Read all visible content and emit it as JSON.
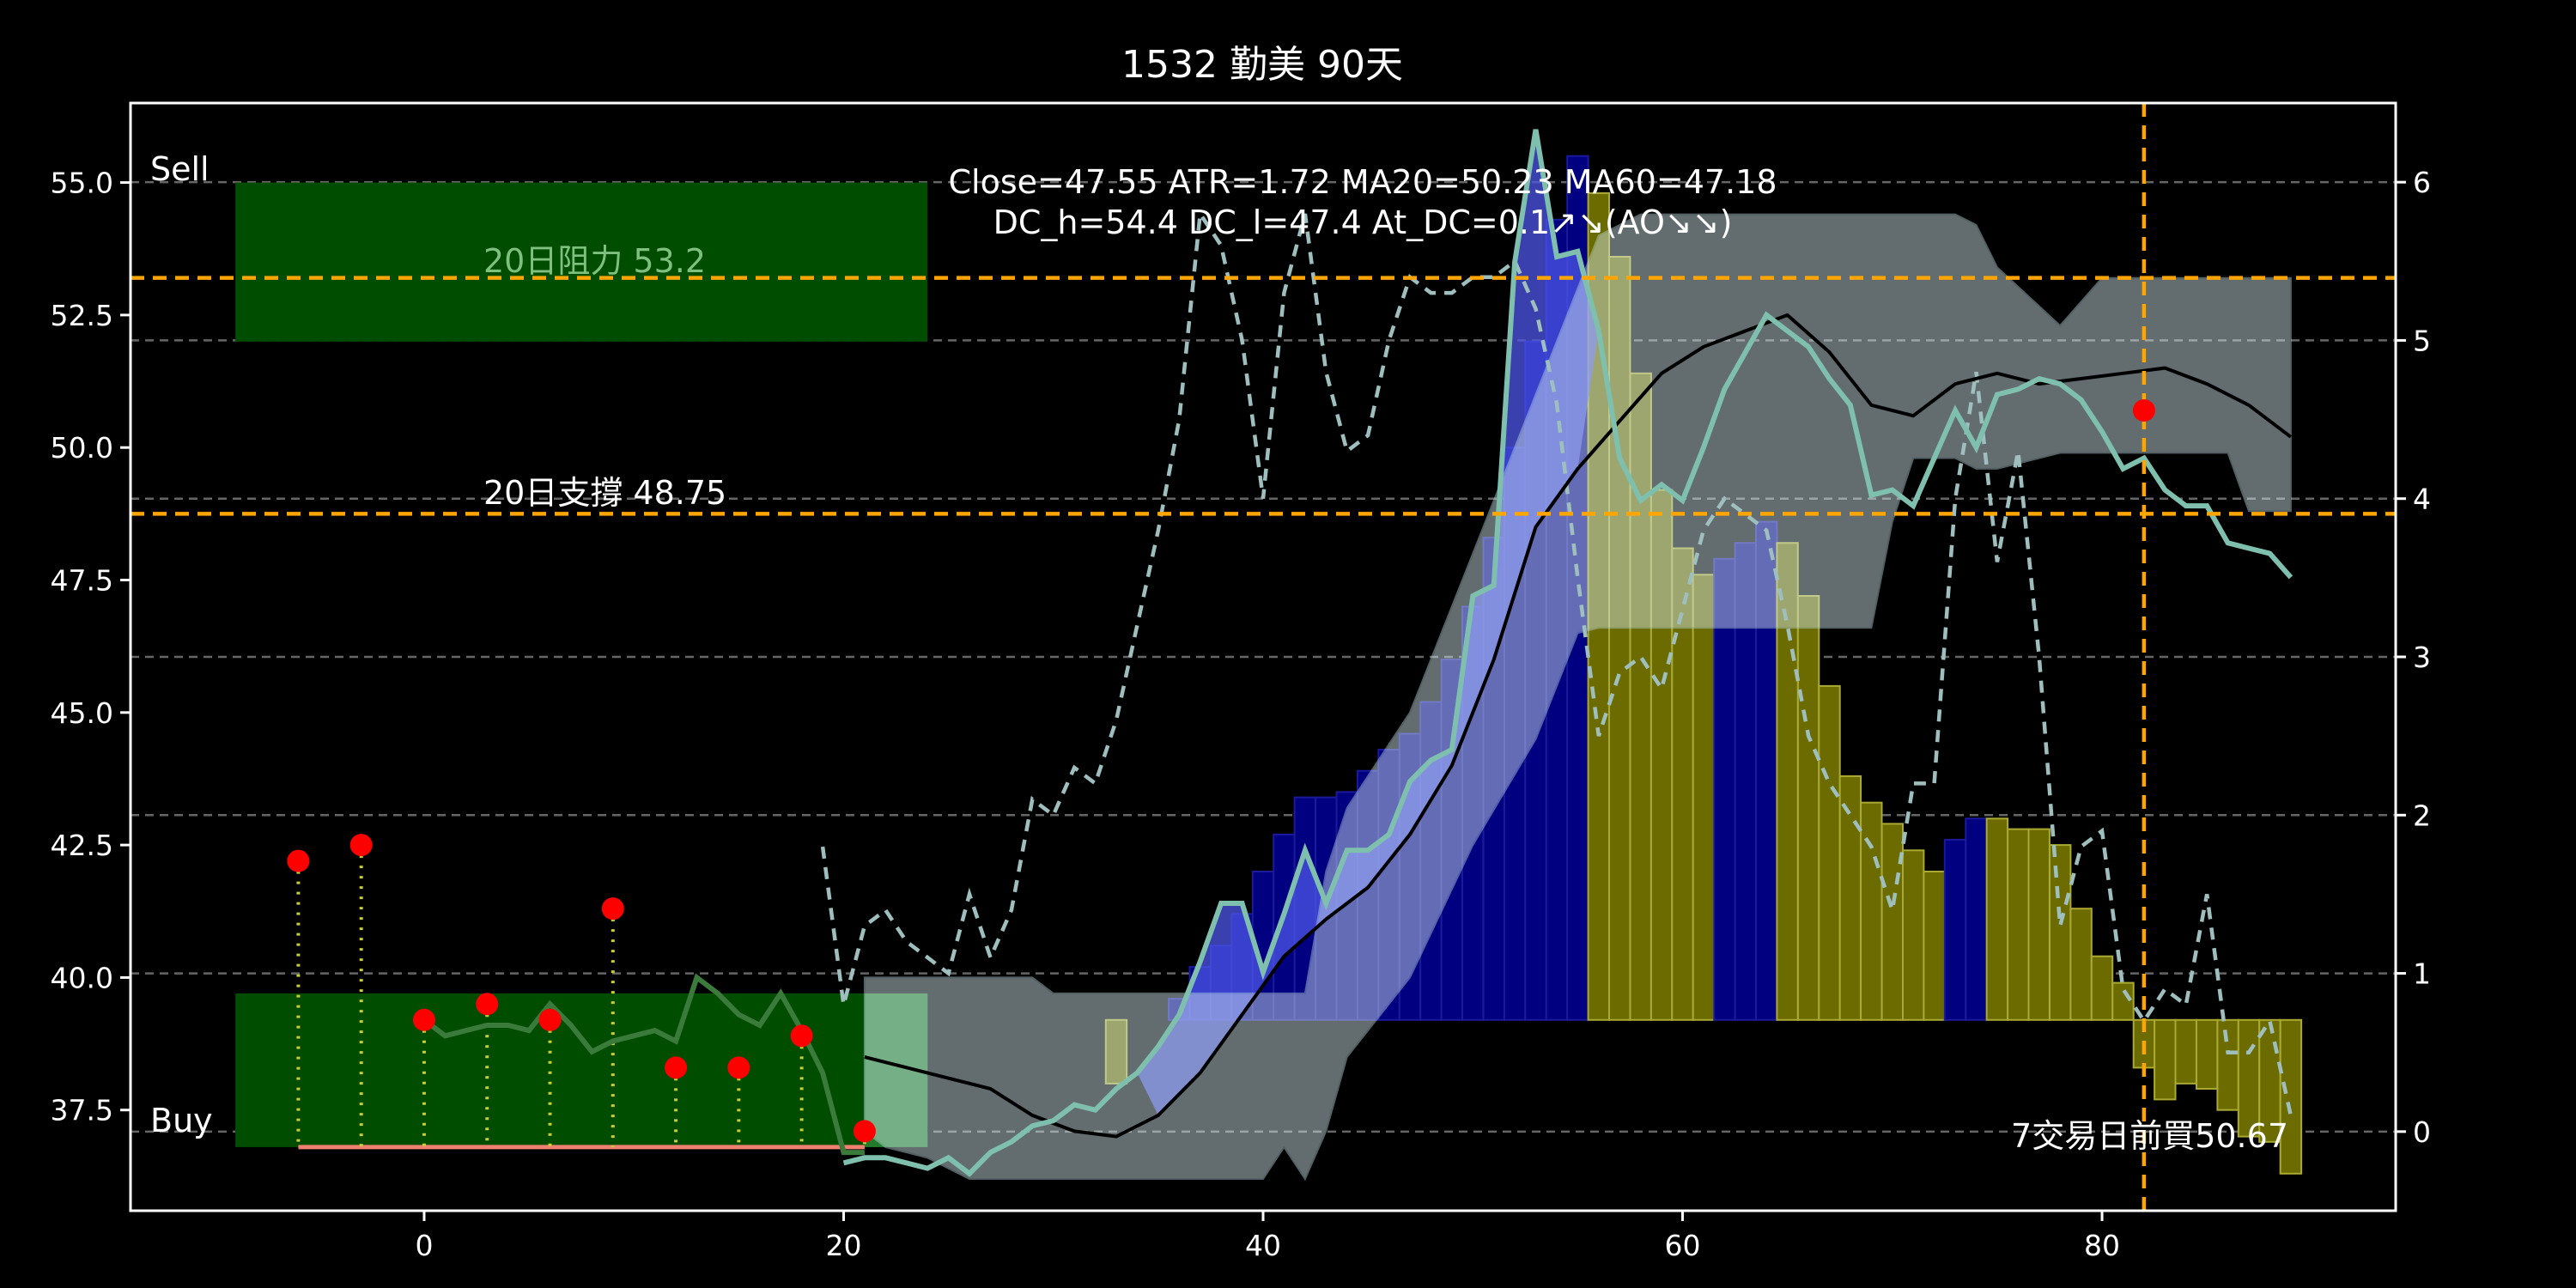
{
  "chart_data": {
    "type": "line",
    "title": "1532 勤美 90天",
    "xlabel": "",
    "ylabel": "",
    "x_range": [
      -14,
      94
    ],
    "y_range": [
      35.6,
      56.5
    ],
    "y2_range": [
      -0.5,
      6.5
    ],
    "x_ticks": [
      0,
      20,
      40,
      60,
      80
    ],
    "x_tick_labels": [
      "0",
      "20",
      "40",
      "60",
      "80"
    ],
    "y_ticks": [
      37.5,
      40.0,
      42.5,
      45.0,
      47.5,
      50.0,
      52.5,
      55.0
    ],
    "y_tick_labels": [
      "37.5",
      "40.0",
      "42.5",
      "45.0",
      "47.5",
      "50.0",
      "52.5",
      "55.0"
    ],
    "y2_ticks": [
      0,
      1,
      2,
      3,
      4,
      5,
      6
    ],
    "y2_tick_labels": [
      "0",
      "1",
      "2",
      "3",
      "4",
      "5",
      "6"
    ],
    "info_line1": "Close=47.55 ATR=1.72 MA20=50.23 MA60=47.18",
    "info_line2": "DC_h=54.4 DC_l=47.4 At_DC=0.1↗↘(AO↘↘)",
    "sell_label": "Sell",
    "buy_label": "Buy",
    "resistance": {
      "value": 53.2,
      "label": "20日阻力 53.2"
    },
    "support": {
      "value": 48.75,
      "label": "20日支撐 48.75"
    },
    "buy_note": {
      "x": 82,
      "label": "7交易日前買50.67"
    },
    "sell_zone": {
      "x": [
        -9,
        24
      ],
      "y": [
        52.0,
        55.0
      ]
    },
    "buy_zone": {
      "x": [
        -9,
        24
      ],
      "y": [
        36.8,
        39.7
      ]
    },
    "ao_bar_base": 39.2,
    "ao_bars": [
      {
        "x": 33,
        "top": 38.0,
        "c": "y"
      },
      {
        "x": 34,
        "top": 39.2,
        "c": "b"
      },
      {
        "x": 35,
        "top": 39.2,
        "c": "b"
      },
      {
        "x": 36,
        "top": 39.6,
        "c": "b"
      },
      {
        "x": 37,
        "top": 40.2,
        "c": "b"
      },
      {
        "x": 38,
        "top": 40.6,
        "c": "b"
      },
      {
        "x": 39,
        "top": 41.2,
        "c": "b"
      },
      {
        "x": 40,
        "top": 42.0,
        "c": "b"
      },
      {
        "x": 41,
        "top": 42.7,
        "c": "b"
      },
      {
        "x": 42,
        "top": 43.4,
        "c": "b"
      },
      {
        "x": 43,
        "top": 43.4,
        "c": "b"
      },
      {
        "x": 44,
        "top": 43.5,
        "c": "b"
      },
      {
        "x": 45,
        "top": 43.9,
        "c": "b"
      },
      {
        "x": 46,
        "top": 44.3,
        "c": "b"
      },
      {
        "x": 47,
        "top": 44.6,
        "c": "b"
      },
      {
        "x": 48,
        "top": 45.2,
        "c": "b"
      },
      {
        "x": 49,
        "top": 46.0,
        "c": "b"
      },
      {
        "x": 50,
        "top": 47.0,
        "c": "b"
      },
      {
        "x": 51,
        "top": 48.3,
        "c": "b"
      },
      {
        "x": 52,
        "top": 50.0,
        "c": "b"
      },
      {
        "x": 53,
        "top": 52.0,
        "c": "b"
      },
      {
        "x": 54,
        "top": 54.3,
        "c": "b"
      },
      {
        "x": 55,
        "top": 55.5,
        "c": "b"
      },
      {
        "x": 56,
        "top": 54.8,
        "c": "y"
      },
      {
        "x": 57,
        "top": 53.6,
        "c": "y"
      },
      {
        "x": 58,
        "top": 51.4,
        "c": "y"
      },
      {
        "x": 59,
        "top": 49.2,
        "c": "y"
      },
      {
        "x": 60,
        "top": 48.1,
        "c": "y"
      },
      {
        "x": 61,
        "top": 47.6,
        "c": "y"
      },
      {
        "x": 62,
        "top": 47.9,
        "c": "b"
      },
      {
        "x": 63,
        "top": 48.2,
        "c": "b"
      },
      {
        "x": 64,
        "top": 48.6,
        "c": "b"
      },
      {
        "x": 65,
        "top": 48.2,
        "c": "y"
      },
      {
        "x": 66,
        "top": 47.2,
        "c": "y"
      },
      {
        "x": 67,
        "top": 45.5,
        "c": "y"
      },
      {
        "x": 68,
        "top": 43.8,
        "c": "y"
      },
      {
        "x": 69,
        "top": 43.3,
        "c": "y"
      },
      {
        "x": 70,
        "top": 42.9,
        "c": "y"
      },
      {
        "x": 71,
        "top": 42.4,
        "c": "y"
      },
      {
        "x": 72,
        "top": 42.0,
        "c": "y"
      },
      {
        "x": 73,
        "top": 42.6,
        "c": "b"
      },
      {
        "x": 74,
        "top": 43.0,
        "c": "b"
      },
      {
        "x": 75,
        "top": 43.0,
        "c": "y"
      },
      {
        "x": 76,
        "top": 42.8,
        "c": "y"
      },
      {
        "x": 77,
        "top": 42.8,
        "c": "y"
      },
      {
        "x": 78,
        "top": 42.5,
        "c": "y"
      },
      {
        "x": 79,
        "top": 41.3,
        "c": "y"
      },
      {
        "x": 80,
        "top": 40.4,
        "c": "y"
      },
      {
        "x": 81,
        "top": 39.9,
        "c": "y"
      },
      {
        "x": 82,
        "top": 38.3,
        "c": "y"
      },
      {
        "x": 83,
        "top": 37.7,
        "c": "y"
      },
      {
        "x": 84,
        "top": 38.0,
        "c": "y"
      },
      {
        "x": 85,
        "top": 37.9,
        "c": "y"
      },
      {
        "x": 86,
        "top": 37.5,
        "c": "y"
      },
      {
        "x": 87,
        "top": 37.0,
        "c": "y"
      },
      {
        "x": 88,
        "top": 36.9,
        "c": "y"
      },
      {
        "x": 89,
        "top": 36.3,
        "c": "y"
      }
    ],
    "dc_band": {
      "x": [
        21,
        22,
        24,
        26,
        29,
        30,
        32,
        34,
        36,
        38,
        40,
        41,
        42,
        43,
        44,
        47,
        50,
        53,
        55,
        56,
        58,
        60,
        62,
        66,
        68,
        69,
        70,
        71,
        73,
        74,
        75,
        78,
        80,
        81,
        82,
        85,
        86,
        87,
        89
      ],
      "upper": [
        40.0,
        40.0,
        40.0,
        40.0,
        40.0,
        39.7,
        39.7,
        39.7,
        39.7,
        39.7,
        39.7,
        39.7,
        39.7,
        42.0,
        43.2,
        45.0,
        48.0,
        51.0,
        53.0,
        54.0,
        54.4,
        54.4,
        54.4,
        54.4,
        54.4,
        54.4,
        54.4,
        54.4,
        54.4,
        54.2,
        53.4,
        52.3,
        53.2,
        53.2,
        53.2,
        53.2,
        53.2,
        53.2,
        53.2
      ],
      "lower": [
        37.1,
        36.8,
        36.6,
        36.2,
        36.2,
        36.2,
        36.2,
        36.2,
        36.2,
        36.2,
        36.2,
        36.8,
        36.2,
        37.1,
        38.5,
        40.0,
        42.5,
        44.5,
        46.5,
        46.6,
        46.6,
        46.6,
        46.6,
        46.6,
        46.6,
        46.6,
        48.6,
        49.8,
        49.8,
        49.6,
        49.6,
        49.9,
        49.9,
        49.9,
        49.9,
        49.9,
        49.9,
        48.8,
        48.8
      ]
    },
    "series": [
      {
        "color": "#7fbfae",
        "x": [
          20,
          21,
          22,
          23,
          24,
          25,
          26,
          27,
          28,
          29,
          30,
          31,
          32,
          33,
          34,
          35,
          36,
          37,
          38,
          39,
          40,
          41,
          42,
          43,
          44,
          45,
          46,
          47,
          48,
          49,
          50,
          51,
          52,
          53,
          54,
          55,
          56,
          57,
          58,
          59,
          60,
          61,
          62,
          63,
          64,
          65,
          66,
          67,
          68,
          69,
          70,
          71,
          72,
          73,
          74,
          75,
          76,
          77,
          78,
          79,
          80,
          81,
          82,
          83,
          84,
          85,
          86,
          87,
          88,
          89
        ],
        "y": [
          36.5,
          36.6,
          36.6,
          36.5,
          36.4,
          36.6,
          36.3,
          36.7,
          36.9,
          37.2,
          37.3,
          37.6,
          37.5,
          37.9,
          38.2,
          38.7,
          39.3,
          40.3,
          41.4,
          41.4,
          40.1,
          41.2,
          42.4,
          41.4,
          42.4,
          42.4,
          42.7,
          43.7,
          44.1,
          44.3,
          47.2,
          47.4,
          53.5,
          56.0,
          53.6,
          53.7,
          52.2,
          49.8,
          49.0,
          49.3,
          49.0,
          50.0,
          51.1,
          51.8,
          52.5,
          52.2,
          51.9,
          51.3,
          50.8,
          49.1,
          49.2,
          48.9,
          49.8,
          50.7,
          50.0,
          51.0,
          51.1,
          51.3,
          51.2,
          50.9,
          50.3,
          49.6,
          49.8,
          49.2,
          48.9,
          48.9,
          48.2,
          48.1,
          48.0,
          47.55
        ]
      },
      {
        "color": "#3a7a3a",
        "x": [
          0,
          1,
          2,
          3,
          4,
          5,
          6,
          7,
          8,
          9,
          10,
          11,
          12,
          13,
          14,
          15,
          16,
          17,
          18,
          19,
          20,
          21
        ],
        "y": [
          39.2,
          38.9,
          39.0,
          39.1,
          39.1,
          39.0,
          39.5,
          39.1,
          38.6,
          38.8,
          38.9,
          39.0,
          38.8,
          40.0,
          39.7,
          39.3,
          39.1,
          39.7,
          39.0,
          38.2,
          36.7,
          36.7
        ]
      },
      {
        "color": "#000000",
        "x": [
          21,
          23,
          25,
          27,
          29,
          31,
          33,
          35,
          37,
          39,
          41,
          43,
          45,
          47,
          49,
          51,
          53,
          55,
          57,
          59,
          61,
          63,
          65,
          67,
          69,
          71,
          73,
          75,
          77,
          79,
          81,
          83,
          85,
          87,
          89
        ],
        "y": [
          38.5,
          38.3,
          38.1,
          37.9,
          37.4,
          37.1,
          37.0,
          37.4,
          38.2,
          39.3,
          40.4,
          41.1,
          41.7,
          42.7,
          44.0,
          46.0,
          48.5,
          49.6,
          50.5,
          51.4,
          51.9,
          52.2,
          52.5,
          51.8,
          50.8,
          50.6,
          51.2,
          51.4,
          51.2,
          51.3,
          51.4,
          51.5,
          51.2,
          50.8,
          50.2
        ]
      }
    ],
    "dashed_series": {
      "color": "#9fbfbf",
      "x": [
        19,
        20,
        21,
        22,
        23,
        24,
        25,
        26,
        27,
        28,
        29,
        30,
        31,
        32,
        33,
        34,
        35,
        36,
        37,
        38,
        39,
        40,
        41,
        42,
        43,
        44,
        45,
        46,
        47,
        48,
        49,
        50,
        51,
        52,
        53,
        54,
        55,
        56,
        57,
        58,
        59,
        60,
        61,
        62,
        63,
        64,
        65,
        66,
        67,
        68,
        69,
        70,
        71,
        72,
        73,
        74,
        75,
        76,
        77,
        78,
        79,
        80,
        81,
        82,
        83,
        84,
        85,
        86,
        87,
        88,
        89
      ],
      "y2": [
        1.8,
        0.8,
        1.3,
        1.4,
        1.2,
        1.1,
        1.0,
        1.5,
        1.1,
        1.4,
        2.1,
        2.0,
        2.3,
        2.2,
        2.6,
        3.2,
        3.8,
        4.5,
        5.8,
        5.6,
        5.0,
        4.0,
        5.3,
        5.8,
        4.8,
        4.3,
        4.4,
        5.0,
        5.4,
        5.3,
        5.3,
        5.4,
        5.4,
        5.5,
        5.2,
        4.6,
        3.5,
        2.5,
        2.9,
        3.0,
        2.8,
        3.3,
        3.8,
        4.0,
        3.9,
        3.8,
        3.2,
        2.5,
        2.2,
        2.0,
        1.8,
        1.4,
        2.2,
        2.2,
        4.0,
        4.8,
        3.6,
        4.3,
        3.0,
        1.3,
        1.8,
        1.9,
        0.9,
        0.7,
        0.9,
        0.8,
        1.5,
        0.5,
        0.5,
        0.7,
        0.1
      ]
    },
    "past_signals": {
      "x": [
        -6,
        -3,
        0,
        3,
        6,
        9,
        12,
        15,
        18,
        21
      ],
      "y": [
        42.2,
        42.5,
        39.2,
        39.5,
        39.2,
        41.3,
        38.3,
        38.3,
        38.9,
        37.1
      ],
      "baseline": 36.8
    },
    "current_signal": {
      "x": 82,
      "y": 50.7
    },
    "colors": {
      "background": "#000000",
      "zone_green": "#004d00",
      "zone_green_buy_overlay": "#2d8a3a",
      "grid": "#666666",
      "orange": "#ffa500",
      "band": "#dbeff5",
      "blue_fill": "#4d55e8",
      "bar_blue": "#000080",
      "bar_yellow": "#6b6b00",
      "bar_yellow_edge": "#aaaa33",
      "baseline_salmon": "#f08070",
      "stem_yellow": "#cccc33",
      "marker_red": "#ff0000"
    }
  }
}
